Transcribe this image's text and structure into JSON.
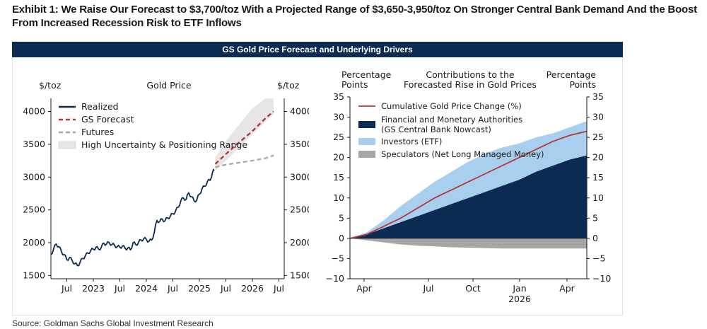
{
  "title": "Exhibit 1: We Raise Our Forecast to $3,700/toz With a Projected Range of $3,650-3,950/toz On Stronger Central Bank Demand And the Boost From Increased Recession Risk to ETF Inflows",
  "panel_title": "GS Gold Price Forecast and Underlying Drivers",
  "source": "Source: Goldman Sachs Global Investment Research",
  "colors": {
    "navy": "#0c2b52",
    "light_blue": "#a9cfee",
    "red": "#b23a3a",
    "gray": "#a6a6a6",
    "band": "#e6e6e6"
  },
  "chart_data": [
    {
      "type": "line",
      "title": "Gold Price",
      "ylabel_left": "$/toz",
      "ylabel_right": "$/toz",
      "ylim": [
        1450,
        4200
      ],
      "xlim": [
        2022.2,
        2026.6
      ],
      "y_ticks": [
        1500,
        2000,
        2500,
        3000,
        3500,
        4000
      ],
      "x_ticks": [
        {
          "value": 2022.5,
          "label": "Jul"
        },
        {
          "value": 2023.0,
          "label": "2023"
        },
        {
          "value": 2023.5,
          "label": "Jul"
        },
        {
          "value": 2024.0,
          "label": "2024"
        },
        {
          "value": 2024.5,
          "label": "Jul"
        },
        {
          "value": 2025.0,
          "label": "2025"
        },
        {
          "value": 2025.5,
          "label": "Jul"
        },
        {
          "value": 2026.0,
          "label": "2026"
        },
        {
          "value": 2026.5,
          "label": "Jul"
        }
      ],
      "legend": [
        "Realized",
        "GS Forecast",
        "Futures",
        "High Uncertainty & Positioning Range"
      ],
      "series": [
        {
          "name": "Realized",
          "x": [
            2022.2,
            2022.25,
            2022.3,
            2022.35,
            2022.4,
            2022.45,
            2022.5,
            2022.55,
            2022.6,
            2022.65,
            2022.7,
            2022.75,
            2022.8,
            2022.85,
            2022.9,
            2022.95,
            2023.0,
            2023.05,
            2023.1,
            2023.15,
            2023.2,
            2023.25,
            2023.3,
            2023.35,
            2023.4,
            2023.45,
            2023.5,
            2023.55,
            2023.6,
            2023.65,
            2023.7,
            2023.75,
            2023.8,
            2023.85,
            2023.9,
            2023.95,
            2024.0,
            2024.05,
            2024.1,
            2024.15,
            2024.2,
            2024.25,
            2024.3,
            2024.35,
            2024.4,
            2024.45,
            2024.5,
            2024.55,
            2024.6,
            2024.65,
            2024.7,
            2024.75,
            2024.8,
            2024.85,
            2024.9,
            2024.95,
            2025.0,
            2025.05,
            2025.1,
            2025.15,
            2025.2,
            2025.25,
            2025.28
          ],
          "y": [
            1820,
            1900,
            1980,
            1940,
            1860,
            1820,
            1740,
            1770,
            1730,
            1680,
            1650,
            1700,
            1760,
            1800,
            1840,
            1880,
            1900,
            1930,
            1900,
            1930,
            1990,
            1980,
            2000,
            1970,
            1960,
            1940,
            1930,
            1950,
            1910,
            1920,
            1890,
            2000,
            1970,
            2000,
            2040,
            2060,
            2050,
            2020,
            2040,
            2160,
            2340,
            2320,
            2360,
            2330,
            2380,
            2400,
            2440,
            2480,
            2540,
            2640,
            2680,
            2660,
            2760,
            2700,
            2640,
            2650,
            2740,
            2820,
            2860,
            2930,
            2950,
            3080,
            3100
          ]
        },
        {
          "name": "GS Forecast",
          "x": [
            2025.3,
            2025.5,
            2025.75,
            2026.0,
            2026.25,
            2026.4
          ],
          "y": [
            3200,
            3350,
            3530,
            3700,
            3900,
            4000
          ]
        },
        {
          "name": "Futures",
          "x": [
            2025.3,
            2025.5,
            2025.75,
            2026.0,
            2026.25,
            2026.4
          ],
          "y": [
            3150,
            3190,
            3220,
            3250,
            3290,
            3330
          ]
        },
        {
          "name": "High Uncertainty & Positioning Range",
          "x": [
            2025.3,
            2025.5,
            2025.75,
            2026.0,
            2026.25,
            2026.4
          ],
          "y_low": [
            3100,
            3250,
            3450,
            3650,
            3850,
            3960
          ],
          "y_high": [
            3300,
            3550,
            3800,
            4050,
            4200,
            4200
          ]
        }
      ]
    },
    {
      "type": "area",
      "title": "Contributions to the Forecasted Rise in Gold Prices",
      "ylabel_left": "Percentage Points",
      "ylabel_right": "Percentage Points",
      "ylim": [
        -10,
        35
      ],
      "y_ticks": [
        -10,
        -5,
        0,
        5,
        10,
        15,
        20,
        25,
        30,
        35
      ],
      "x_ticks": [
        "Apr",
        "Jul",
        "Oct",
        "Jan 2026",
        "Apr"
      ],
      "legend": [
        "Cumulative Gold Price Change (%)",
        "Financial and Monetary Authorities (GS Central Bank Nowcast)",
        "Investors (ETF)",
        "Speculators (Net Long Managed Money)"
      ],
      "x": [
        0,
        1,
        2,
        3,
        4,
        5,
        6,
        7,
        8,
        9,
        10,
        11,
        12,
        13,
        14
      ],
      "series": [
        {
          "name": "Financial and Monetary Authorities (GS Central Bank Nowcast)",
          "values": [
            0,
            1,
            2.5,
            4,
            5.5,
            7,
            8.5,
            10,
            11.5,
            13,
            14.5,
            16.5,
            18,
            19.5,
            20.5
          ]
        },
        {
          "name": "Investors (ETF)",
          "values": [
            0,
            0.5,
            2,
            4,
            5.5,
            7,
            8,
            9,
            9.5,
            9.5,
            9,
            8.5,
            8,
            8,
            8.5
          ]
        },
        {
          "name": "Speculators (Net Long Managed Money)",
          "values": [
            0,
            -0.5,
            -1,
            -1.5,
            -1.8,
            -2,
            -2.2,
            -2.3,
            -2.4,
            -2.5,
            -2.5,
            -2.5,
            -2.5,
            -2.5,
            -2.5
          ]
        },
        {
          "name": "Cumulative Gold Price Change (%)",
          "values": [
            0,
            1,
            3,
            5,
            7.5,
            10,
            12,
            14,
            16,
            18,
            20,
            22,
            24,
            25.5,
            26.5
          ]
        }
      ]
    }
  ]
}
